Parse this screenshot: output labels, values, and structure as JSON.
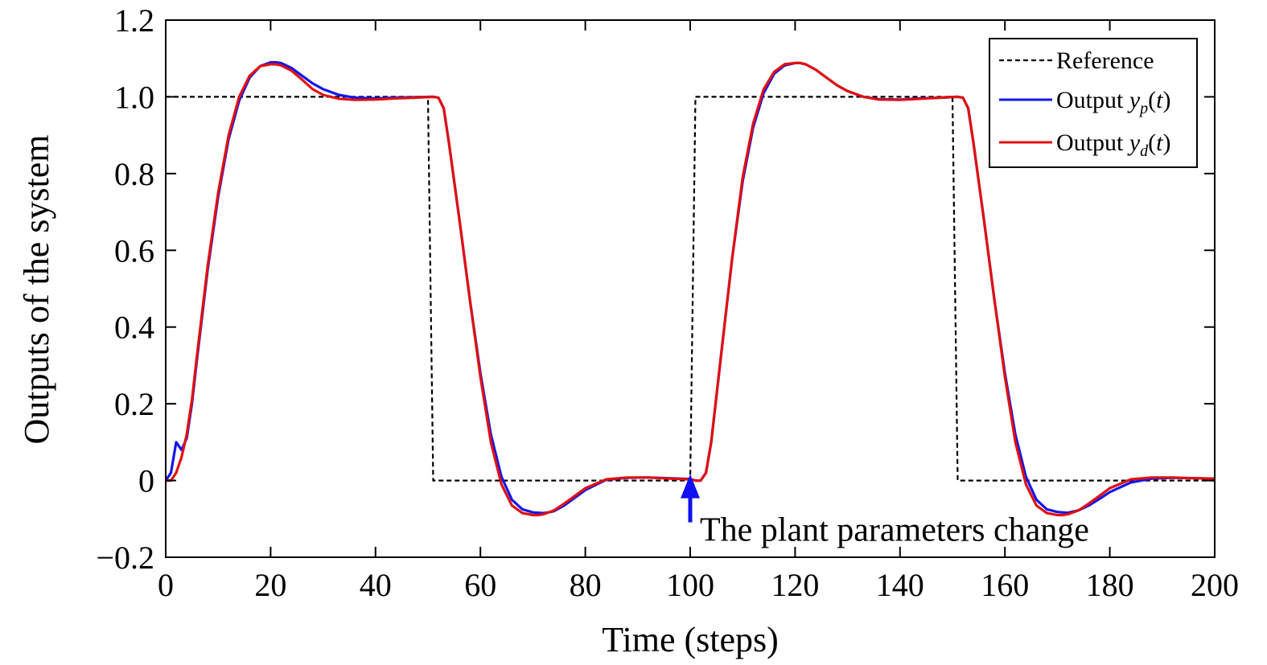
{
  "chart_data": {
    "type": "line",
    "title": "",
    "xlabel": "Time (steps)",
    "ylabel": "Outputs of the system",
    "xlim": [
      0,
      200
    ],
    "ylim": [
      -0.2,
      1.2
    ],
    "xticks": [
      0,
      20,
      40,
      60,
      80,
      100,
      120,
      140,
      160,
      180,
      200
    ],
    "xtick_labels": [
      "0",
      "20",
      "40",
      "60",
      "80",
      "100",
      "120",
      "140",
      "160",
      "180",
      "200"
    ],
    "yticks": [
      -0.2,
      0,
      0.2,
      0.4,
      0.6,
      0.8,
      1.0,
      1.2
    ],
    "ytick_labels": [
      "−0.2",
      "0",
      "0.2",
      "0.4",
      "0.6",
      "0.8",
      "1.0",
      "1.2"
    ],
    "grid": false,
    "legend_position": "top-right",
    "series": [
      {
        "name": "Reference",
        "color": "#000000",
        "dash": true,
        "x": [
          0,
          50,
          51,
          100,
          101,
          150,
          151,
          200
        ],
        "y": [
          1.0,
          1.0,
          0.0,
          0.0,
          1.0,
          1.0,
          0.0,
          0.0
        ]
      },
      {
        "name": "Output yp(t)",
        "color": "#1515e8",
        "x": [
          0,
          1,
          2,
          3,
          4,
          5,
          6,
          8,
          10,
          12,
          14,
          16,
          18,
          20,
          21,
          22,
          24,
          26,
          28,
          30,
          33,
          36,
          40,
          44,
          48,
          51,
          52,
          53,
          54,
          56,
          58,
          60,
          62,
          64,
          66,
          68,
          70,
          72,
          73,
          74,
          76,
          78,
          80,
          84,
          88,
          92,
          96,
          100,
          101,
          102,
          103,
          104,
          105,
          106,
          108,
          110,
          112,
          114,
          116,
          118,
          120,
          121,
          122,
          124,
          126,
          128,
          130,
          133,
          136,
          140,
          144,
          148,
          151,
          152,
          153,
          154,
          156,
          158,
          160,
          162,
          164,
          166,
          168,
          170,
          172,
          173,
          174,
          176,
          178,
          180,
          184,
          188,
          192,
          196,
          200
        ],
        "y": [
          0,
          0.02,
          0.1,
          0.08,
          0.11,
          0.2,
          0.32,
          0.55,
          0.74,
          0.89,
          0.99,
          1.05,
          1.08,
          1.09,
          1.09,
          1.088,
          1.075,
          1.055,
          1.035,
          1.02,
          1.005,
          0.998,
          0.996,
          0.998,
          0.999,
          1.0,
          0.998,
          0.97,
          0.88,
          0.68,
          0.47,
          0.28,
          0.12,
          0.01,
          -0.05,
          -0.075,
          -0.083,
          -0.085,
          -0.083,
          -0.08,
          -0.065,
          -0.045,
          -0.025,
          0.002,
          0.007,
          0.008,
          0.006,
          0.004,
          0.0,
          0.0,
          0.02,
          0.1,
          0.22,
          0.34,
          0.58,
          0.78,
          0.92,
          1.01,
          1.06,
          1.082,
          1.088,
          1.088,
          1.085,
          1.07,
          1.05,
          1.03,
          1.015,
          1.0,
          0.994,
          0.993,
          0.996,
          0.998,
          1.0,
          0.998,
          0.97,
          0.88,
          0.68,
          0.47,
          0.28,
          0.12,
          0.01,
          -0.05,
          -0.075,
          -0.082,
          -0.084,
          -0.081,
          -0.078,
          -0.065,
          -0.048,
          -0.03,
          -0.005,
          0.005,
          0.007,
          0.006,
          0.005
        ]
      },
      {
        "name": "Output yd(t)",
        "color": "#e01010",
        "x": [
          0,
          1,
          2,
          3,
          4,
          5,
          6,
          8,
          10,
          12,
          14,
          16,
          18,
          20,
          21,
          22,
          24,
          26,
          28,
          30,
          33,
          36,
          40,
          44,
          48,
          51,
          52,
          53,
          54,
          56,
          58,
          60,
          62,
          64,
          66,
          68,
          70,
          71,
          72,
          74,
          76,
          78,
          80,
          84,
          88,
          92,
          96,
          100,
          101,
          102,
          103,
          104,
          105,
          106,
          108,
          110,
          112,
          114,
          116,
          118,
          120,
          121,
          122,
          124,
          126,
          128,
          130,
          133,
          136,
          140,
          144,
          148,
          151,
          152,
          153,
          154,
          156,
          158,
          160,
          162,
          164,
          166,
          168,
          170,
          171,
          172,
          174,
          176,
          178,
          180,
          184,
          188,
          192,
          196,
          200
        ],
        "y": [
          0,
          0.0,
          0.02,
          0.06,
          0.12,
          0.21,
          0.33,
          0.56,
          0.75,
          0.9,
          1.0,
          1.055,
          1.08,
          1.085,
          1.085,
          1.082,
          1.068,
          1.045,
          1.02,
          1.005,
          0.995,
          0.992,
          0.993,
          0.996,
          0.998,
          1.0,
          0.998,
          0.97,
          0.88,
          0.68,
          0.47,
          0.27,
          0.1,
          -0.01,
          -0.065,
          -0.085,
          -0.09,
          -0.09,
          -0.088,
          -0.078,
          -0.06,
          -0.04,
          -0.02,
          0.003,
          0.008,
          0.008,
          0.005,
          0.003,
          0.0,
          0.0,
          0.02,
          0.1,
          0.22,
          0.34,
          0.58,
          0.79,
          0.93,
          1.02,
          1.065,
          1.085,
          1.088,
          1.088,
          1.085,
          1.07,
          1.05,
          1.03,
          1.015,
          1.0,
          0.993,
          0.992,
          0.995,
          0.998,
          1.0,
          0.998,
          0.97,
          0.88,
          0.68,
          0.47,
          0.27,
          0.1,
          -0.01,
          -0.065,
          -0.085,
          -0.09,
          -0.09,
          -0.088,
          -0.078,
          -0.06,
          -0.04,
          -0.02,
          0.003,
          0.008,
          0.008,
          0.006,
          0.005
        ]
      }
    ],
    "legend": {
      "entries": [
        {
          "prefix": "Reference",
          "var": "",
          "sub": "",
          "suffix": ""
        },
        {
          "prefix": "Output ",
          "var": "y",
          "sub": "p",
          "suffix": "(t)"
        },
        {
          "prefix": "Output ",
          "var": "y",
          "sub": "d",
          "suffix": "(t)"
        }
      ]
    },
    "annotations": [
      {
        "text": "The plant parameters change",
        "x": 100,
        "y": 0.0,
        "arrow_color": "#1010f0"
      }
    ]
  }
}
